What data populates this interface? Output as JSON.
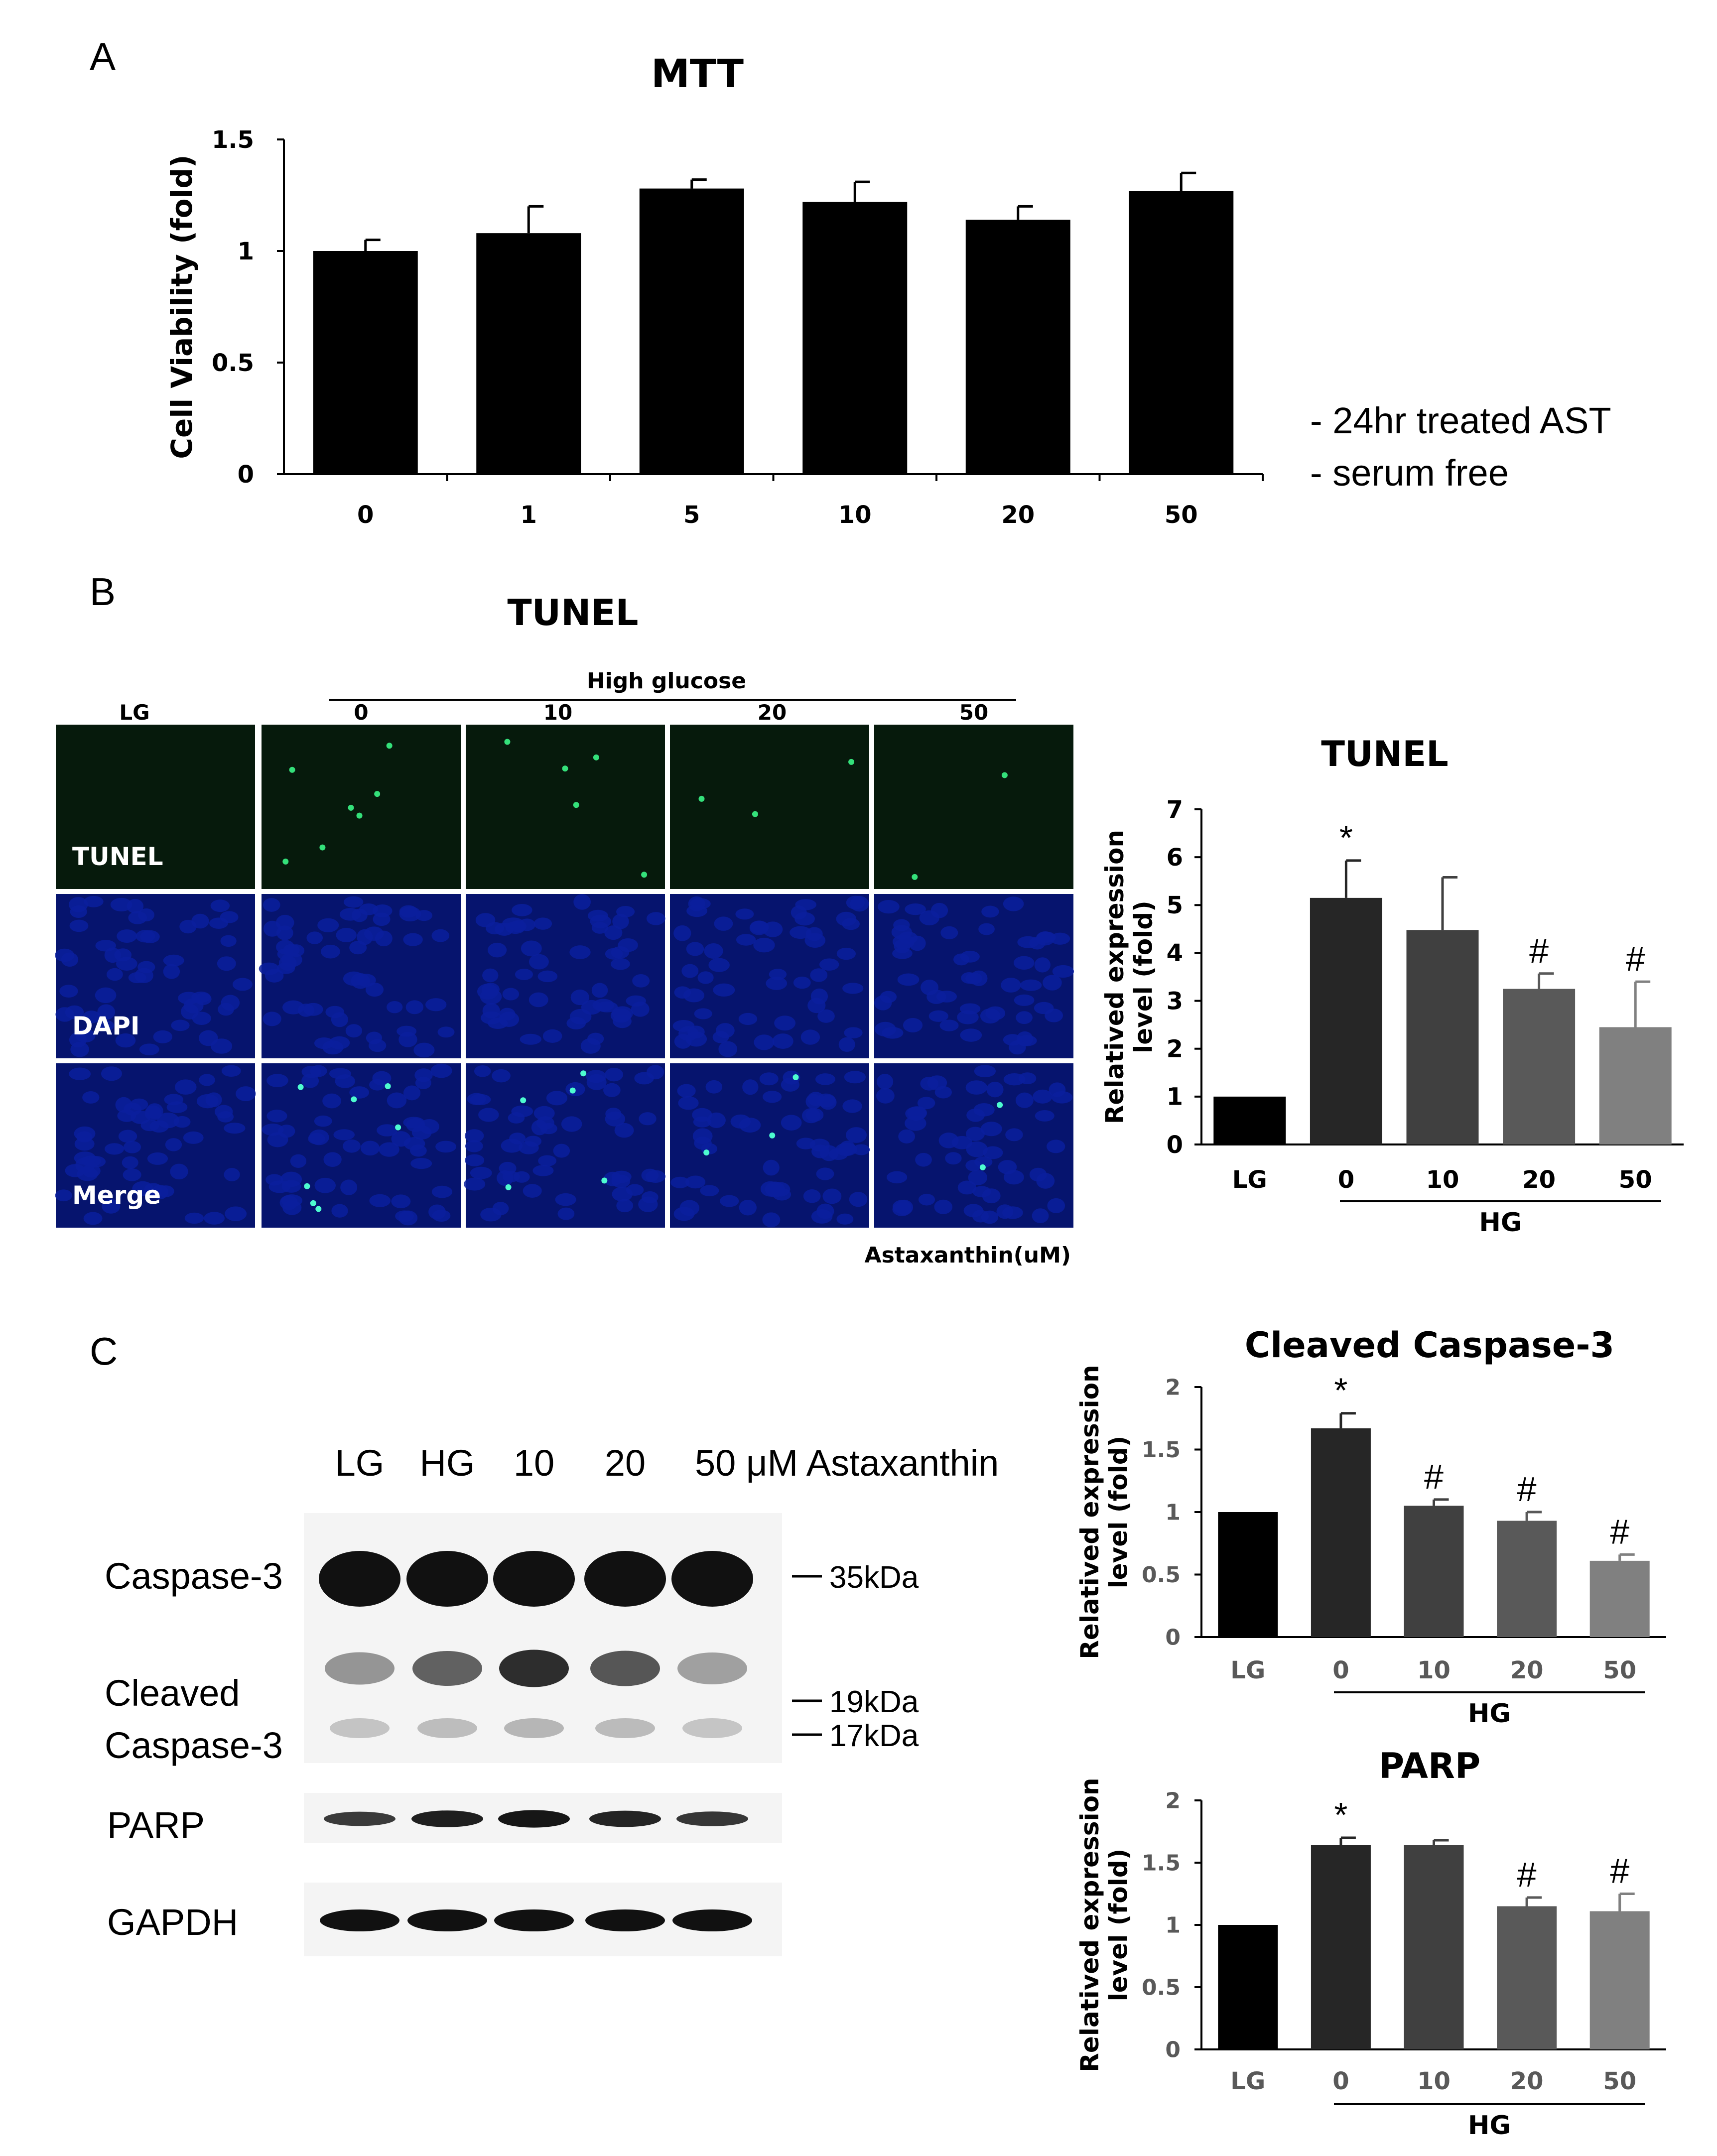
{
  "panels": {
    "a": {
      "letter": "A",
      "notes": [
        "- 24hr treated AST",
        "- serum free"
      ]
    },
    "b": {
      "letter": "B",
      "title": "TUNEL",
      "header_group": "High glucose",
      "column_labels": [
        "LG",
        "0",
        "10",
        "20",
        "50"
      ],
      "row_labels": [
        "TUNEL",
        "DAPI",
        "Merge"
      ],
      "unit_caption": "Astaxanthin(uM)"
    },
    "c": {
      "letter": "C",
      "lane_labels": [
        "LG",
        "HG",
        "10",
        "20",
        "50 μM Astaxanthin"
      ],
      "band_labels": [
        "Caspase-3",
        "Cleaved",
        "Caspase-3",
        "PARP",
        "GAPDH"
      ],
      "markers": [
        "35kDa",
        "19kDa",
        "17kDa"
      ]
    }
  },
  "colors": {
    "bar_black": "#000000",
    "bar_shades": [
      "#000000",
      "#262626",
      "#404040",
      "#595959",
      "#808080"
    ],
    "fluor_green": "#0b2a12",
    "fluor_blue": "#0a1f9e",
    "blot_band": "#111111"
  },
  "chart_data": [
    {
      "type": "bar",
      "title": "MTT",
      "ylabel": "Cell Viability (fold)",
      "xlabel": "",
      "categories": [
        "0",
        "1",
        "5",
        "10",
        "20",
        "50"
      ],
      "values": [
        1.0,
        1.08,
        1.28,
        1.22,
        1.14,
        1.27
      ],
      "errors": [
        0.05,
        0.12,
        0.04,
        0.09,
        0.06,
        0.08
      ],
      "ylim": [
        0,
        1.5
      ],
      "yticks": [
        "0",
        "0.5",
        "1",
        "1.5"
      ],
      "grid": false
    },
    {
      "type": "bar",
      "title": "TUNEL",
      "ylabel": "Relatived expression level (fold)",
      "categories": [
        "LG",
        "0",
        "10",
        "20",
        "50"
      ],
      "group_label": "HG",
      "values": [
        1.0,
        5.15,
        4.48,
        3.25,
        2.45
      ],
      "errors": [
        0.0,
        0.78,
        1.1,
        0.32,
        0.95
      ],
      "annotations": [
        "",
        "*",
        "",
        "#",
        "#"
      ],
      "ylim": [
        0,
        7
      ],
      "yticks": [
        "0",
        "1",
        "2",
        "3",
        "4",
        "5",
        "6",
        "7"
      ],
      "grid": false
    },
    {
      "type": "bar",
      "title": "Cleaved Caspase-3",
      "ylabel": "Relatived expression level (fold)",
      "categories": [
        "LG",
        "0",
        "10",
        "20",
        "50"
      ],
      "group_label": "HG",
      "values": [
        1.0,
        1.67,
        1.05,
        0.93,
        0.61
      ],
      "errors": [
        0.0,
        0.12,
        0.05,
        0.07,
        0.05
      ],
      "annotations": [
        "",
        "*",
        "#",
        "#",
        "#"
      ],
      "ylim": [
        0,
        2
      ],
      "yticks": [
        "0",
        "0.5",
        "1",
        "1.5",
        "2"
      ],
      "grid": false
    },
    {
      "type": "bar",
      "title": "PARP",
      "ylabel": "Relatived expression level (fold)",
      "categories": [
        "LG",
        "0",
        "10",
        "20",
        "50"
      ],
      "group_label": "HG",
      "values": [
        1.0,
        1.64,
        1.64,
        1.15,
        1.11
      ],
      "errors": [
        0.0,
        0.06,
        0.04,
        0.07,
        0.14
      ],
      "annotations": [
        "",
        "*",
        "",
        "#",
        "#"
      ],
      "ylim": [
        0,
        2
      ],
      "yticks": [
        "0",
        "0.5",
        "1",
        "1.5",
        "2"
      ],
      "grid": false
    }
  ]
}
